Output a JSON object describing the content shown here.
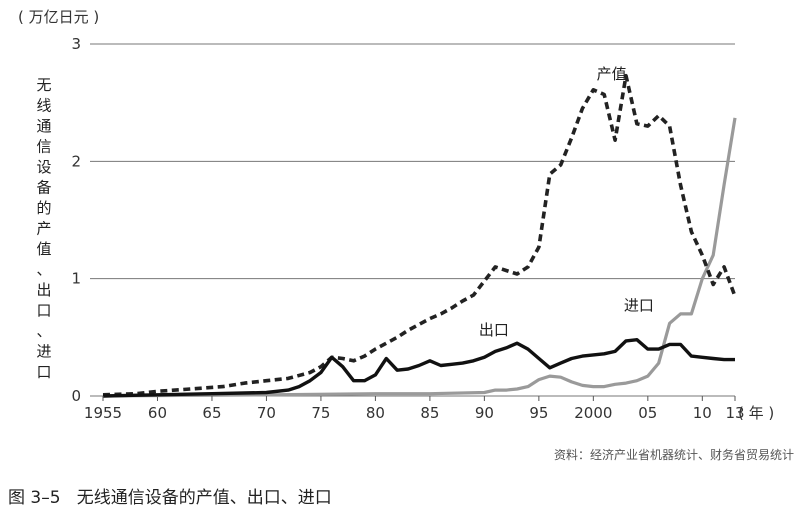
{
  "chart_data": {
    "type": "line",
    "unit_label": "( 万亿日元 )",
    "ylabel": "无线通信设备的产值、出口、进口",
    "ylim": [
      0,
      3
    ],
    "yticks": [
      "0",
      "1",
      "2",
      "3"
    ],
    "xlim": [
      1955,
      2013
    ],
    "xticks": [
      {
        "value": 1955,
        "label": "1955"
      },
      {
        "value": 1960,
        "label": "60"
      },
      {
        "value": 1965,
        "label": "65"
      },
      {
        "value": 1970,
        "label": "70"
      },
      {
        "value": 1975,
        "label": "75"
      },
      {
        "value": 1980,
        "label": "80"
      },
      {
        "value": 1985,
        "label": "85"
      },
      {
        "value": 1990,
        "label": "90"
      },
      {
        "value": 1995,
        "label": "95"
      },
      {
        "value": 2000,
        "label": "2000"
      },
      {
        "value": 2005,
        "label": "05"
      },
      {
        "value": 2010,
        "label": "10"
      },
      {
        "value": 2013,
        "label": "13"
      }
    ],
    "x_unit": "( 年 )",
    "grid": true,
    "series": [
      {
        "name": "产值",
        "style": "dashed",
        "color": "#222222",
        "x": [
          1955,
          1958,
          1960,
          1963,
          1966,
          1968,
          1970,
          1972,
          1974,
          1975,
          1976,
          1977,
          1978,
          1979,
          1980,
          1981,
          1982,
          1983,
          1984,
          1985,
          1986,
          1987,
          1988,
          1989,
          1990,
          1991,
          1992,
          1993,
          1994,
          1995,
          1996,
          1997,
          1998,
          1999,
          2000,
          2001,
          2002,
          2003,
          2004,
          2005,
          2006,
          2007,
          2008,
          2009,
          2010,
          2011,
          2012,
          2013
        ],
        "values": [
          0.01,
          0.02,
          0.04,
          0.06,
          0.08,
          0.11,
          0.13,
          0.15,
          0.2,
          0.25,
          0.33,
          0.32,
          0.3,
          0.34,
          0.4,
          0.45,
          0.5,
          0.56,
          0.61,
          0.66,
          0.7,
          0.75,
          0.81,
          0.86,
          0.98,
          1.1,
          1.07,
          1.04,
          1.1,
          1.27,
          1.89,
          1.97,
          2.2,
          2.45,
          2.61,
          2.57,
          2.18,
          2.73,
          2.32,
          2.3,
          2.39,
          2.3,
          1.8,
          1.4,
          1.2,
          0.95,
          1.1,
          0.85
        ]
      },
      {
        "name": "出口",
        "style": "solid",
        "color": "#111111",
        "x": [
          1955,
          1960,
          1965,
          1970,
          1972,
          1973,
          1974,
          1975,
          1976,
          1977,
          1978,
          1979,
          1980,
          1981,
          1982,
          1983,
          1984,
          1985,
          1986,
          1987,
          1988,
          1989,
          1990,
          1991,
          1992,
          1993,
          1994,
          1995,
          1996,
          1997,
          1998,
          1999,
          2000,
          2001,
          2002,
          2003,
          2004,
          2005,
          2006,
          2007,
          2008,
          2009,
          2010,
          2011,
          2012,
          2013
        ],
        "values": [
          0,
          0.01,
          0.02,
          0.03,
          0.05,
          0.08,
          0.13,
          0.2,
          0.33,
          0.25,
          0.13,
          0.13,
          0.18,
          0.32,
          0.22,
          0.23,
          0.26,
          0.3,
          0.26,
          0.27,
          0.28,
          0.3,
          0.33,
          0.38,
          0.41,
          0.45,
          0.4,
          0.32,
          0.24,
          0.28,
          0.32,
          0.34,
          0.35,
          0.36,
          0.38,
          0.47,
          0.48,
          0.4,
          0.4,
          0.44,
          0.44,
          0.34,
          0.33,
          0.32,
          0.31,
          0.31
        ]
      },
      {
        "name": "进口",
        "style": "solid",
        "color": "#9a9a9a",
        "x": [
          1955,
          1970,
          1980,
          1985,
          1990,
          1991,
          1992,
          1993,
          1994,
          1995,
          1996,
          1997,
          1998,
          1999,
          2000,
          2001,
          2002,
          2003,
          2004,
          2005,
          2006,
          2007,
          2008,
          2009,
          2010,
          2011,
          2012,
          2013
        ],
        "values": [
          0,
          0.01,
          0.02,
          0.02,
          0.03,
          0.05,
          0.05,
          0.06,
          0.08,
          0.14,
          0.17,
          0.16,
          0.12,
          0.09,
          0.08,
          0.08,
          0.1,
          0.11,
          0.13,
          0.17,
          0.28,
          0.62,
          0.7,
          0.7,
          1.0,
          1.2,
          1.8,
          2.37
        ]
      }
    ],
    "annotations": [
      {
        "text": "产值",
        "series": "产值"
      },
      {
        "text": "出口",
        "series": "出口"
      },
      {
        "text": "进口",
        "series": "进口"
      }
    ]
  },
  "source_note": "资料：经济产业省机器统计、财务省贸易统计",
  "caption": "图 3–5   无线通信设备的产值、出口、进口"
}
